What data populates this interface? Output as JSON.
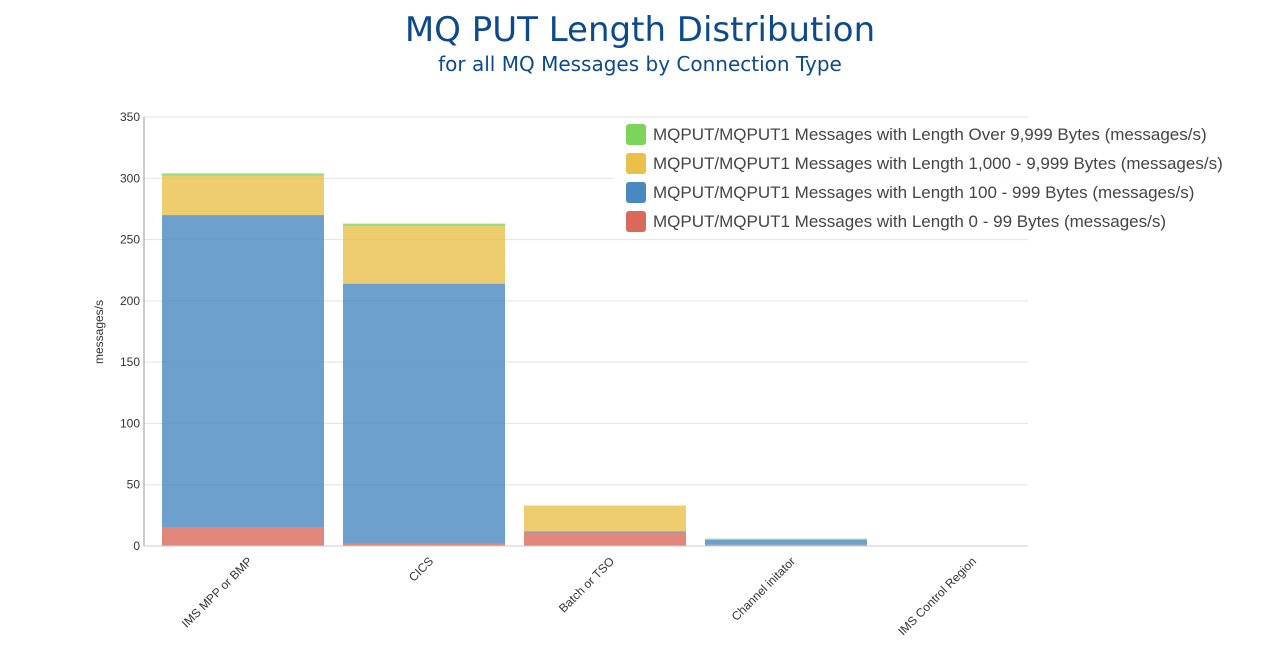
{
  "title": "MQ PUT Length Distribution",
  "subtitle": "for all MQ Messages by Connection Type",
  "chart_data": {
    "type": "bar",
    "stacked": true,
    "categories": [
      "IMS MPP or BMP",
      "CICS",
      "Batch or TSO",
      "Channel initator",
      "IMS Control Region"
    ],
    "series": [
      {
        "name": "MQPUT/MQPUT1 Messages with Length 0 - 99 Bytes (messages/s)",
        "color": "#d9695a",
        "values": [
          15,
          2,
          11,
          1,
          0
        ]
      },
      {
        "name": "MQPUT/MQPUT1 Messages with Length 100 - 999 Bytes (messages/s)",
        "color": "#4a88c2",
        "values": [
          255,
          212,
          1,
          4,
          0
        ]
      },
      {
        "name": "MQPUT/MQPUT1 Messages with Length 1,000 - 9,999 Bytes (messages/s)",
        "color": "#e8c04a",
        "values": [
          32,
          47,
          21,
          0,
          0
        ]
      },
      {
        "name": "MQPUT/MQPUT1 Messages with Length Over 9,999 Bytes (messages/s)",
        "color": "#7cd55a",
        "values": [
          2,
          2,
          0,
          1,
          0
        ]
      }
    ],
    "legend_order": [
      3,
      2,
      1,
      0
    ],
    "ylabel": "messages/s",
    "xlabel": "",
    "ylim": [
      0,
      350
    ],
    "yticks": [
      0,
      50,
      100,
      150,
      200,
      250,
      300,
      350
    ],
    "grid": true,
    "legend_position": "top-right"
  }
}
